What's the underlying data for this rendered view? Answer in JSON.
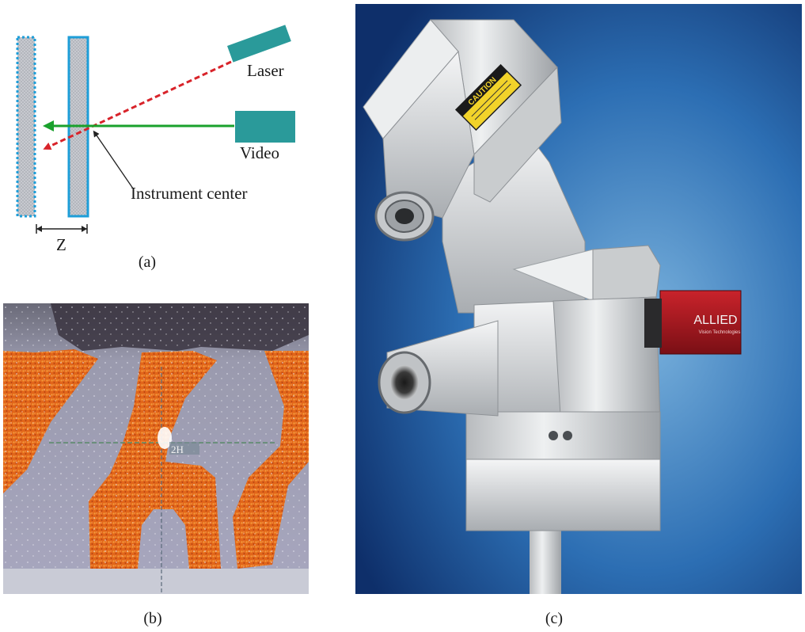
{
  "figure": {
    "panel_a": {
      "labels": {
        "laser": "Laser",
        "video": "Video",
        "instrument_center": "Instrument center",
        "z": "Z"
      },
      "colors": {
        "plate_outline": "#1e9ed8",
        "plate_fill": "#c9cbd0",
        "device": "#2a9a9a",
        "laser_beam": "#d8232a",
        "video_beam": "#1aa12c"
      }
    },
    "panel_b": {
      "readout": "2H"
    },
    "panel_c": {
      "caution_label": "CAUTION",
      "camera_brand": "ALLIED",
      "camera_sub": "Vision Technologies"
    },
    "captions": {
      "a": "(a)",
      "b": "(b)",
      "c": "(c)"
    }
  }
}
